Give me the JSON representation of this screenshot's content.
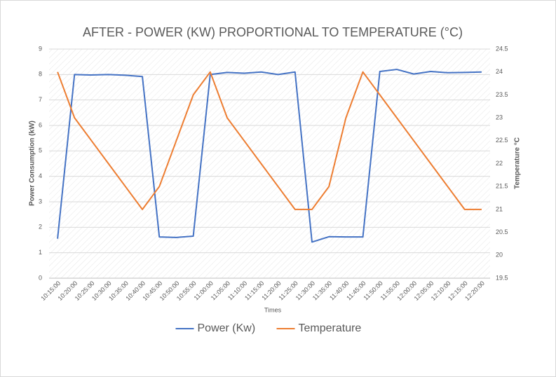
{
  "chart_data": {
    "type": "line",
    "title": "AFTER - POWER (KW) PROPORTIONAL TO TEMPERATURE (°C)",
    "x_label": "Times",
    "y_label": "Power Consumption (kW)",
    "y2_label": "Temperature °C",
    "categories": [
      "10:15:00",
      "10:20:00",
      "10:25:00",
      "10:30:00",
      "10:35:00",
      "10:40:00",
      "10:45:00",
      "10:50:00",
      "10:55:00",
      "11:00:00",
      "11:05:00",
      "11:10:00",
      "11:15:00",
      "11:20:00",
      "11:25:00",
      "11:30:00",
      "11:35:00",
      "11:40:00",
      "11:45:00",
      "11:50:00",
      "11:55:00",
      "12:00:00",
      "12:05:00",
      "12:10:00",
      "12:15:00",
      "12:20:00"
    ],
    "series": [
      {
        "name": "Power (Kw)",
        "color": "#4472c4",
        "values": [
          1.55,
          8.0,
          7.98,
          8.0,
          7.97,
          7.92,
          1.62,
          1.6,
          1.65,
          8.0,
          8.08,
          8.05,
          8.1,
          8.0,
          8.1,
          1.42,
          1.63,
          1.62,
          1.62,
          8.12,
          8.2,
          8.02,
          8.12,
          8.07,
          8.08,
          8.1
        ]
      },
      {
        "name": "Temperature",
        "color": "#ed7d31",
        "axis": "y2",
        "values": [
          24,
          23,
          22.5,
          22,
          21.5,
          21,
          21.5,
          22.5,
          23.5,
          24,
          23,
          22.5,
          22,
          21.5,
          21,
          21,
          21.5,
          23,
          24,
          23.5,
          23,
          22.5,
          22,
          21.5,
          21,
          21
        ]
      }
    ],
    "ylim": [
      0,
      9
    ],
    "yticks": [
      0,
      1,
      2,
      3,
      4,
      5,
      6,
      7,
      8,
      9
    ],
    "y2lim": [
      19.5,
      24.5
    ],
    "y2ticks": [
      19.5,
      20,
      20.5,
      21,
      21.5,
      22,
      22.5,
      23,
      23.5,
      24,
      24.5
    ],
    "grid": true,
    "legend": "bottom"
  }
}
